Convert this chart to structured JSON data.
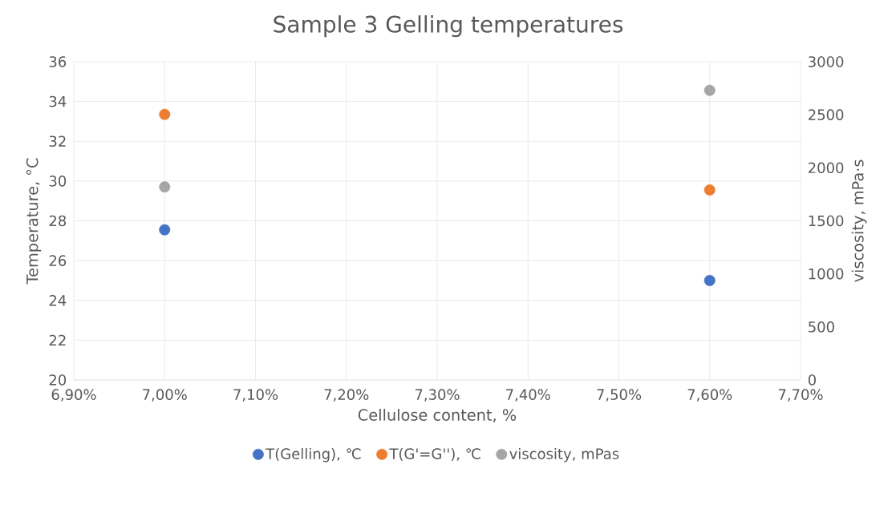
{
  "chart_data": {
    "type": "scatter",
    "title": "Sample 3 Gelling temperatures",
    "xlabel": "Cellulose content, %",
    "ylabel": "Temperature, °C",
    "y2label": "viscosity, mPa·s",
    "x": [
      7.0,
      7.6
    ],
    "series": [
      {
        "name": "T(Gelling), ℃",
        "color": "#4472c4",
        "values": [
          27.55,
          25.0
        ]
      },
      {
        "name": "T(G'=G''), ℃",
        "color": "#ed7d31",
        "values": [
          33.35,
          29.55
        ]
      },
      {
        "name": "viscosity, mPas",
        "color": "#a5a5a5",
        "values": [
          1820,
          2730
        ],
        "axis": "y2"
      }
    ],
    "xlim": [
      6.9,
      7.7
    ],
    "xticks": [
      {
        "value": 6.9,
        "label": "6,90%"
      },
      {
        "value": 7.0,
        "label": "7,00%"
      },
      {
        "value": 7.1,
        "label": "7,10%"
      },
      {
        "value": 7.2,
        "label": "7,20%"
      },
      {
        "value": 7.3,
        "label": "7,30%"
      },
      {
        "value": 7.4,
        "label": "7,40%"
      },
      {
        "value": 7.5,
        "label": "7,50%"
      },
      {
        "value": 7.6,
        "label": "7,60%"
      },
      {
        "value": 7.7,
        "label": "7,70%"
      }
    ],
    "ylim": [
      20,
      36
    ],
    "yticks": [
      20,
      22,
      24,
      26,
      28,
      30,
      32,
      34,
      36
    ],
    "y2lim": [
      0,
      3000
    ],
    "y2ticks": [
      0,
      500,
      1000,
      1500,
      2000,
      2500,
      3000
    ],
    "grid": true,
    "legend": "bottom",
    "marker": "circle"
  }
}
